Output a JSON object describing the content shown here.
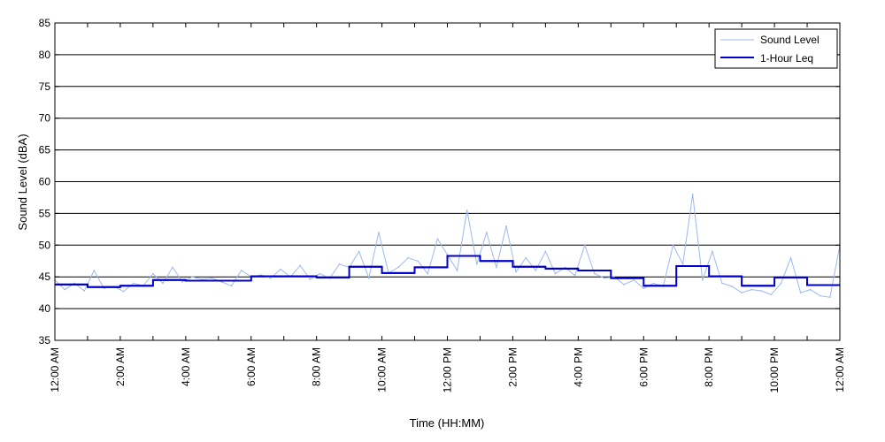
{
  "chart_data": {
    "type": "line",
    "xlabel": "Time (HH:MM)",
    "ylabel": "Sound Level (dBA)",
    "ylim": [
      35,
      85
    ],
    "xlim": [
      "12:00 AM",
      "12:00 AM (next day)"
    ],
    "y_ticks": [
      35,
      40,
      45,
      50,
      55,
      60,
      65,
      70,
      75,
      80,
      85
    ],
    "x_tick_labels": [
      "12:00 AM",
      "2:00 AM",
      "4:00 AM",
      "6:00 AM",
      "8:00 AM",
      "10:00 AM",
      "12:00 PM",
      "2:00 PM",
      "4:00 PM",
      "6:00 PM",
      "8:00 PM",
      "10:00 PM",
      "12:00 AM"
    ],
    "grid": "horizontal",
    "legend_position": "top-right",
    "colors": {
      "sound_level": "#9db8ee",
      "leq": "#0000cc"
    },
    "series": [
      {
        "name": "Sound Level",
        "hours": [
          0,
          0.3,
          0.6,
          0.9,
          1.2,
          1.5,
          1.8,
          2.1,
          2.4,
          2.7,
          3.0,
          3.3,
          3.6,
          3.9,
          4.2,
          4.5,
          4.8,
          5.1,
          5.4,
          5.7,
          6.0,
          6.3,
          6.6,
          6.9,
          7.2,
          7.5,
          7.8,
          8.1,
          8.4,
          8.7,
          9.0,
          9.3,
          9.6,
          9.9,
          10.2,
          10.5,
          10.8,
          11.1,
          11.4,
          11.7,
          12.0,
          12.3,
          12.6,
          12.9,
          13.2,
          13.5,
          13.8,
          14.1,
          14.4,
          14.7,
          15.0,
          15.3,
          15.6,
          15.9,
          16.2,
          16.5,
          16.8,
          17.1,
          17.4,
          17.7,
          18.0,
          18.3,
          18.6,
          18.9,
          19.2,
          19.5,
          19.8,
          20.1,
          20.4,
          20.7,
          21.0,
          21.3,
          21.6,
          21.9,
          22.2,
          22.5,
          22.8,
          23.1,
          23.4,
          23.7,
          24.0
        ],
        "values": [
          44.5,
          43.0,
          44.0,
          42.8,
          46.0,
          43.2,
          43.5,
          42.7,
          44.0,
          43.6,
          45.5,
          44.0,
          46.5,
          44.2,
          45.0,
          44.6,
          44.8,
          44.2,
          43.6,
          46.0,
          45.0,
          45.3,
          44.8,
          46.2,
          45.0,
          46.8,
          44.6,
          45.5,
          44.8,
          47.0,
          46.5,
          49.0,
          44.8,
          52.0,
          45.6,
          46.5,
          48.0,
          47.5,
          45.5,
          51.0,
          48.5,
          46.0,
          55.5,
          47.0,
          52.0,
          46.5,
          53.0,
          45.8,
          48.0,
          46.0,
          49.0,
          45.5,
          46.5,
          45.2,
          50.0,
          45.5,
          44.8,
          45.0,
          43.8,
          44.5,
          43.2,
          44.0,
          43.5,
          50.0,
          47.0,
          58.0,
          44.5,
          49.0,
          44.0,
          43.5,
          42.5,
          43.0,
          42.8,
          42.2,
          44.0,
          48.0,
          42.5,
          43.0,
          42.0,
          41.8,
          50.0
        ]
      },
      {
        "name": "1-Hour Leq",
        "hours": [
          0,
          1,
          2,
          3,
          4,
          5,
          6,
          7,
          8,
          9,
          10,
          11,
          12,
          13,
          14,
          15,
          16,
          17,
          18,
          19,
          20,
          21,
          22,
          23
        ],
        "values": [
          43.8,
          43.4,
          43.6,
          44.5,
          44.4,
          44.4,
          45.1,
          45.1,
          44.9,
          46.6,
          45.6,
          46.5,
          48.3,
          47.5,
          46.6,
          46.3,
          46.0,
          44.8,
          43.6,
          46.7,
          45.1,
          43.6,
          44.9,
          43.7
        ]
      }
    ]
  }
}
